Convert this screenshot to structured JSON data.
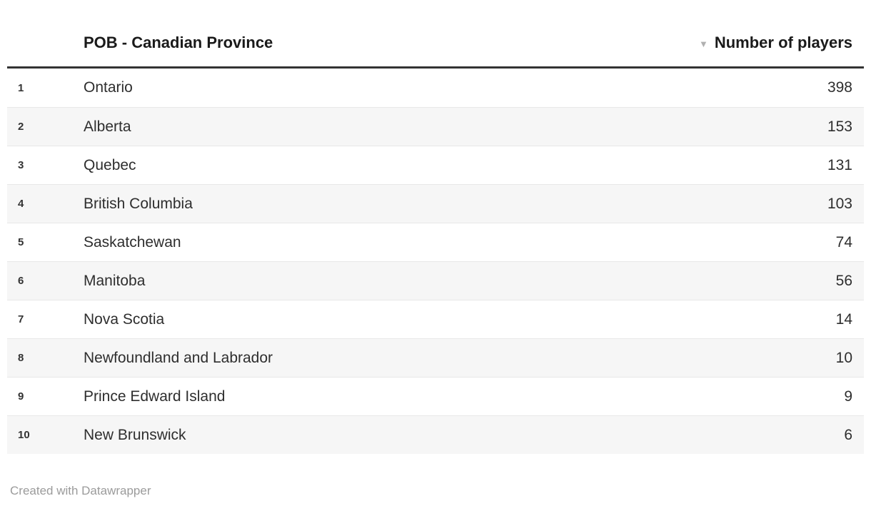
{
  "table": {
    "columns": [
      {
        "label": "",
        "align": "left"
      },
      {
        "label": "POB - Canadian Province",
        "align": "left"
      },
      {
        "label": "Number of players",
        "align": "right",
        "sorted": "desc"
      }
    ],
    "sort_icon": "▼",
    "rows": [
      {
        "rank": "1",
        "province": "Ontario",
        "players": "398"
      },
      {
        "rank": "2",
        "province": "Alberta",
        "players": "153"
      },
      {
        "rank": "3",
        "province": "Quebec",
        "players": "131"
      },
      {
        "rank": "4",
        "province": "British Columbia",
        "players": "103"
      },
      {
        "rank": "5",
        "province": "Saskatchewan",
        "players": "74"
      },
      {
        "rank": "6",
        "province": "Manitoba",
        "players": "56"
      },
      {
        "rank": "7",
        "province": "Nova Scotia",
        "players": "14"
      },
      {
        "rank": "8",
        "province": "Newfoundland and Labrador",
        "players": "10"
      },
      {
        "rank": "9",
        "province": "Prince Edward Island",
        "players": "9"
      },
      {
        "rank": "10",
        "province": "New Brunswick",
        "players": "6"
      }
    ]
  },
  "footer": {
    "credit": "Created with Datawrapper"
  },
  "colors": {
    "header_rule": "#333333",
    "stripe": "#f6f6f6",
    "row_divider": "#e8e8e8",
    "text": "#2e2e2e",
    "muted_text": "#9b9b9b",
    "sort_arrow": "#b0b0b0"
  }
}
